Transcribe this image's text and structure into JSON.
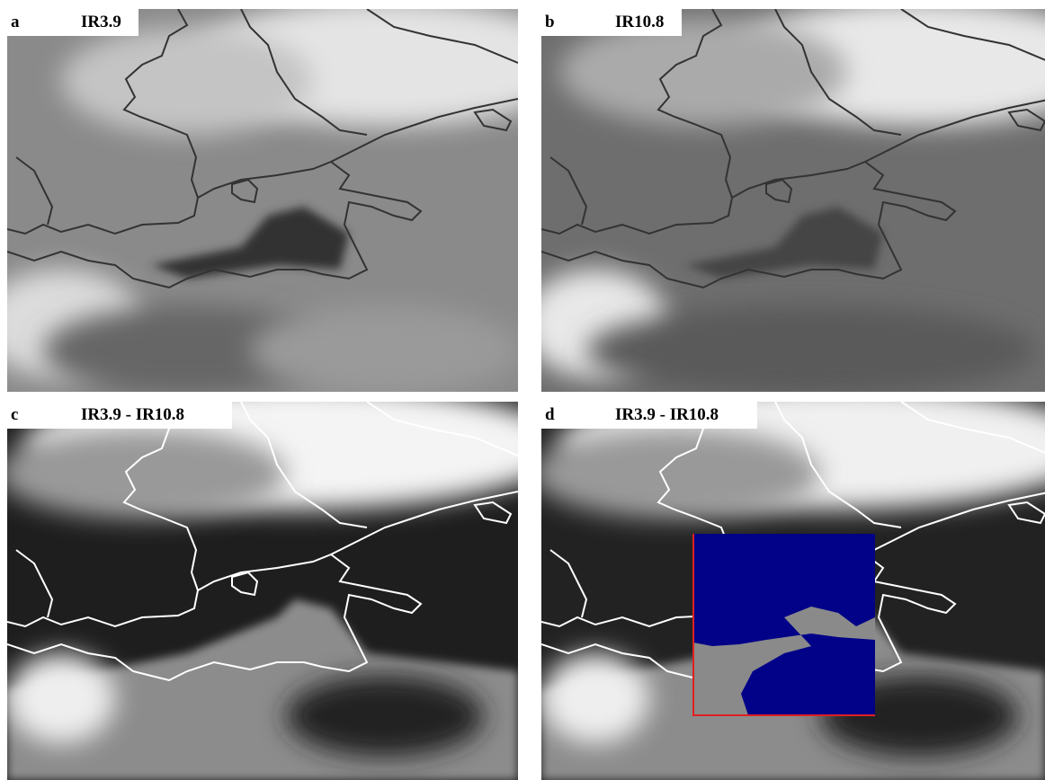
{
  "panels": [
    {
      "letter": "a",
      "title": "IR3.9"
    },
    {
      "letter": "b",
      "title": "IR10.8"
    },
    {
      "letter": "c",
      "title": "IR3.9 - IR10.8"
    },
    {
      "letter": "d",
      "title": "IR3.9 - IR10.8"
    }
  ]
}
